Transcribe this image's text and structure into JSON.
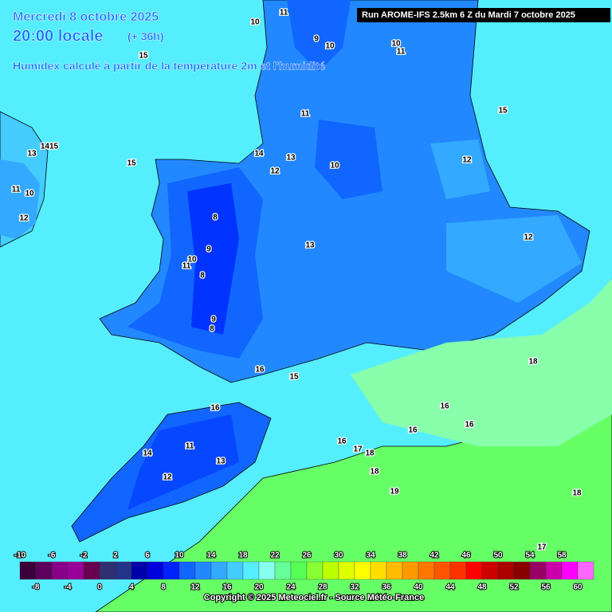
{
  "header": {
    "date": "Mercredi 8 octobre 2025",
    "time": "20:00 locale",
    "lead": "(+ 36h)",
    "subtitle": "Humidex calculé à partir de la température 2m et l'humidité",
    "run": "Run AROME-IFS 2.5km 6 Z du Mardi 7 octobre 2025"
  },
  "contour_labels": [
    10,
    11,
    9,
    10,
    10,
    11,
    15,
    15,
    11,
    14,
    13,
    12,
    10,
    12,
    13,
    1415,
    15,
    11,
    10,
    12,
    8,
    9,
    10,
    11,
    8,
    13,
    12,
    9,
    8,
    16,
    15,
    18,
    16,
    16,
    16,
    16,
    11,
    14,
    13,
    12,
    16,
    17,
    18,
    18,
    19,
    18,
    17
  ],
  "colorbar": {
    "top_labels": [
      -10,
      -6,
      -2,
      2,
      6,
      10,
      14,
      18,
      22,
      26,
      30,
      34,
      38,
      42,
      46,
      50,
      54,
      58
    ],
    "bottom_labels": [
      -8,
      -4,
      0,
      4,
      8,
      12,
      16,
      20,
      24,
      28,
      32,
      36,
      40,
      44,
      48,
      52,
      56,
      60
    ],
    "colors": [
      "#3a003a",
      "#5c005c",
      "#880088",
      "#99009a",
      "#6a0050",
      "#303070",
      "#223388",
      "#0000aa",
      "#0000dd",
      "#0022ff",
      "#1166ff",
      "#2288ff",
      "#33aaff",
      "#44ccff",
      "#55eeff",
      "#88ffee",
      "#66ff99",
      "#55ff55",
      "#88ff33",
      "#bbff00",
      "#ddff00",
      "#ffff00",
      "#ffdd00",
      "#ffbb00",
      "#ff9900",
      "#ff7700",
      "#ff5500",
      "#ff3300",
      "#ff0000",
      "#cc0000",
      "#aa0000",
      "#880000",
      "#990066",
      "#cc00aa",
      "#ff00ff",
      "#ff66ff"
    ]
  },
  "footer": {
    "copyright": "Copyright © 2025 Meteociel.fr - Source Météo-France"
  }
}
